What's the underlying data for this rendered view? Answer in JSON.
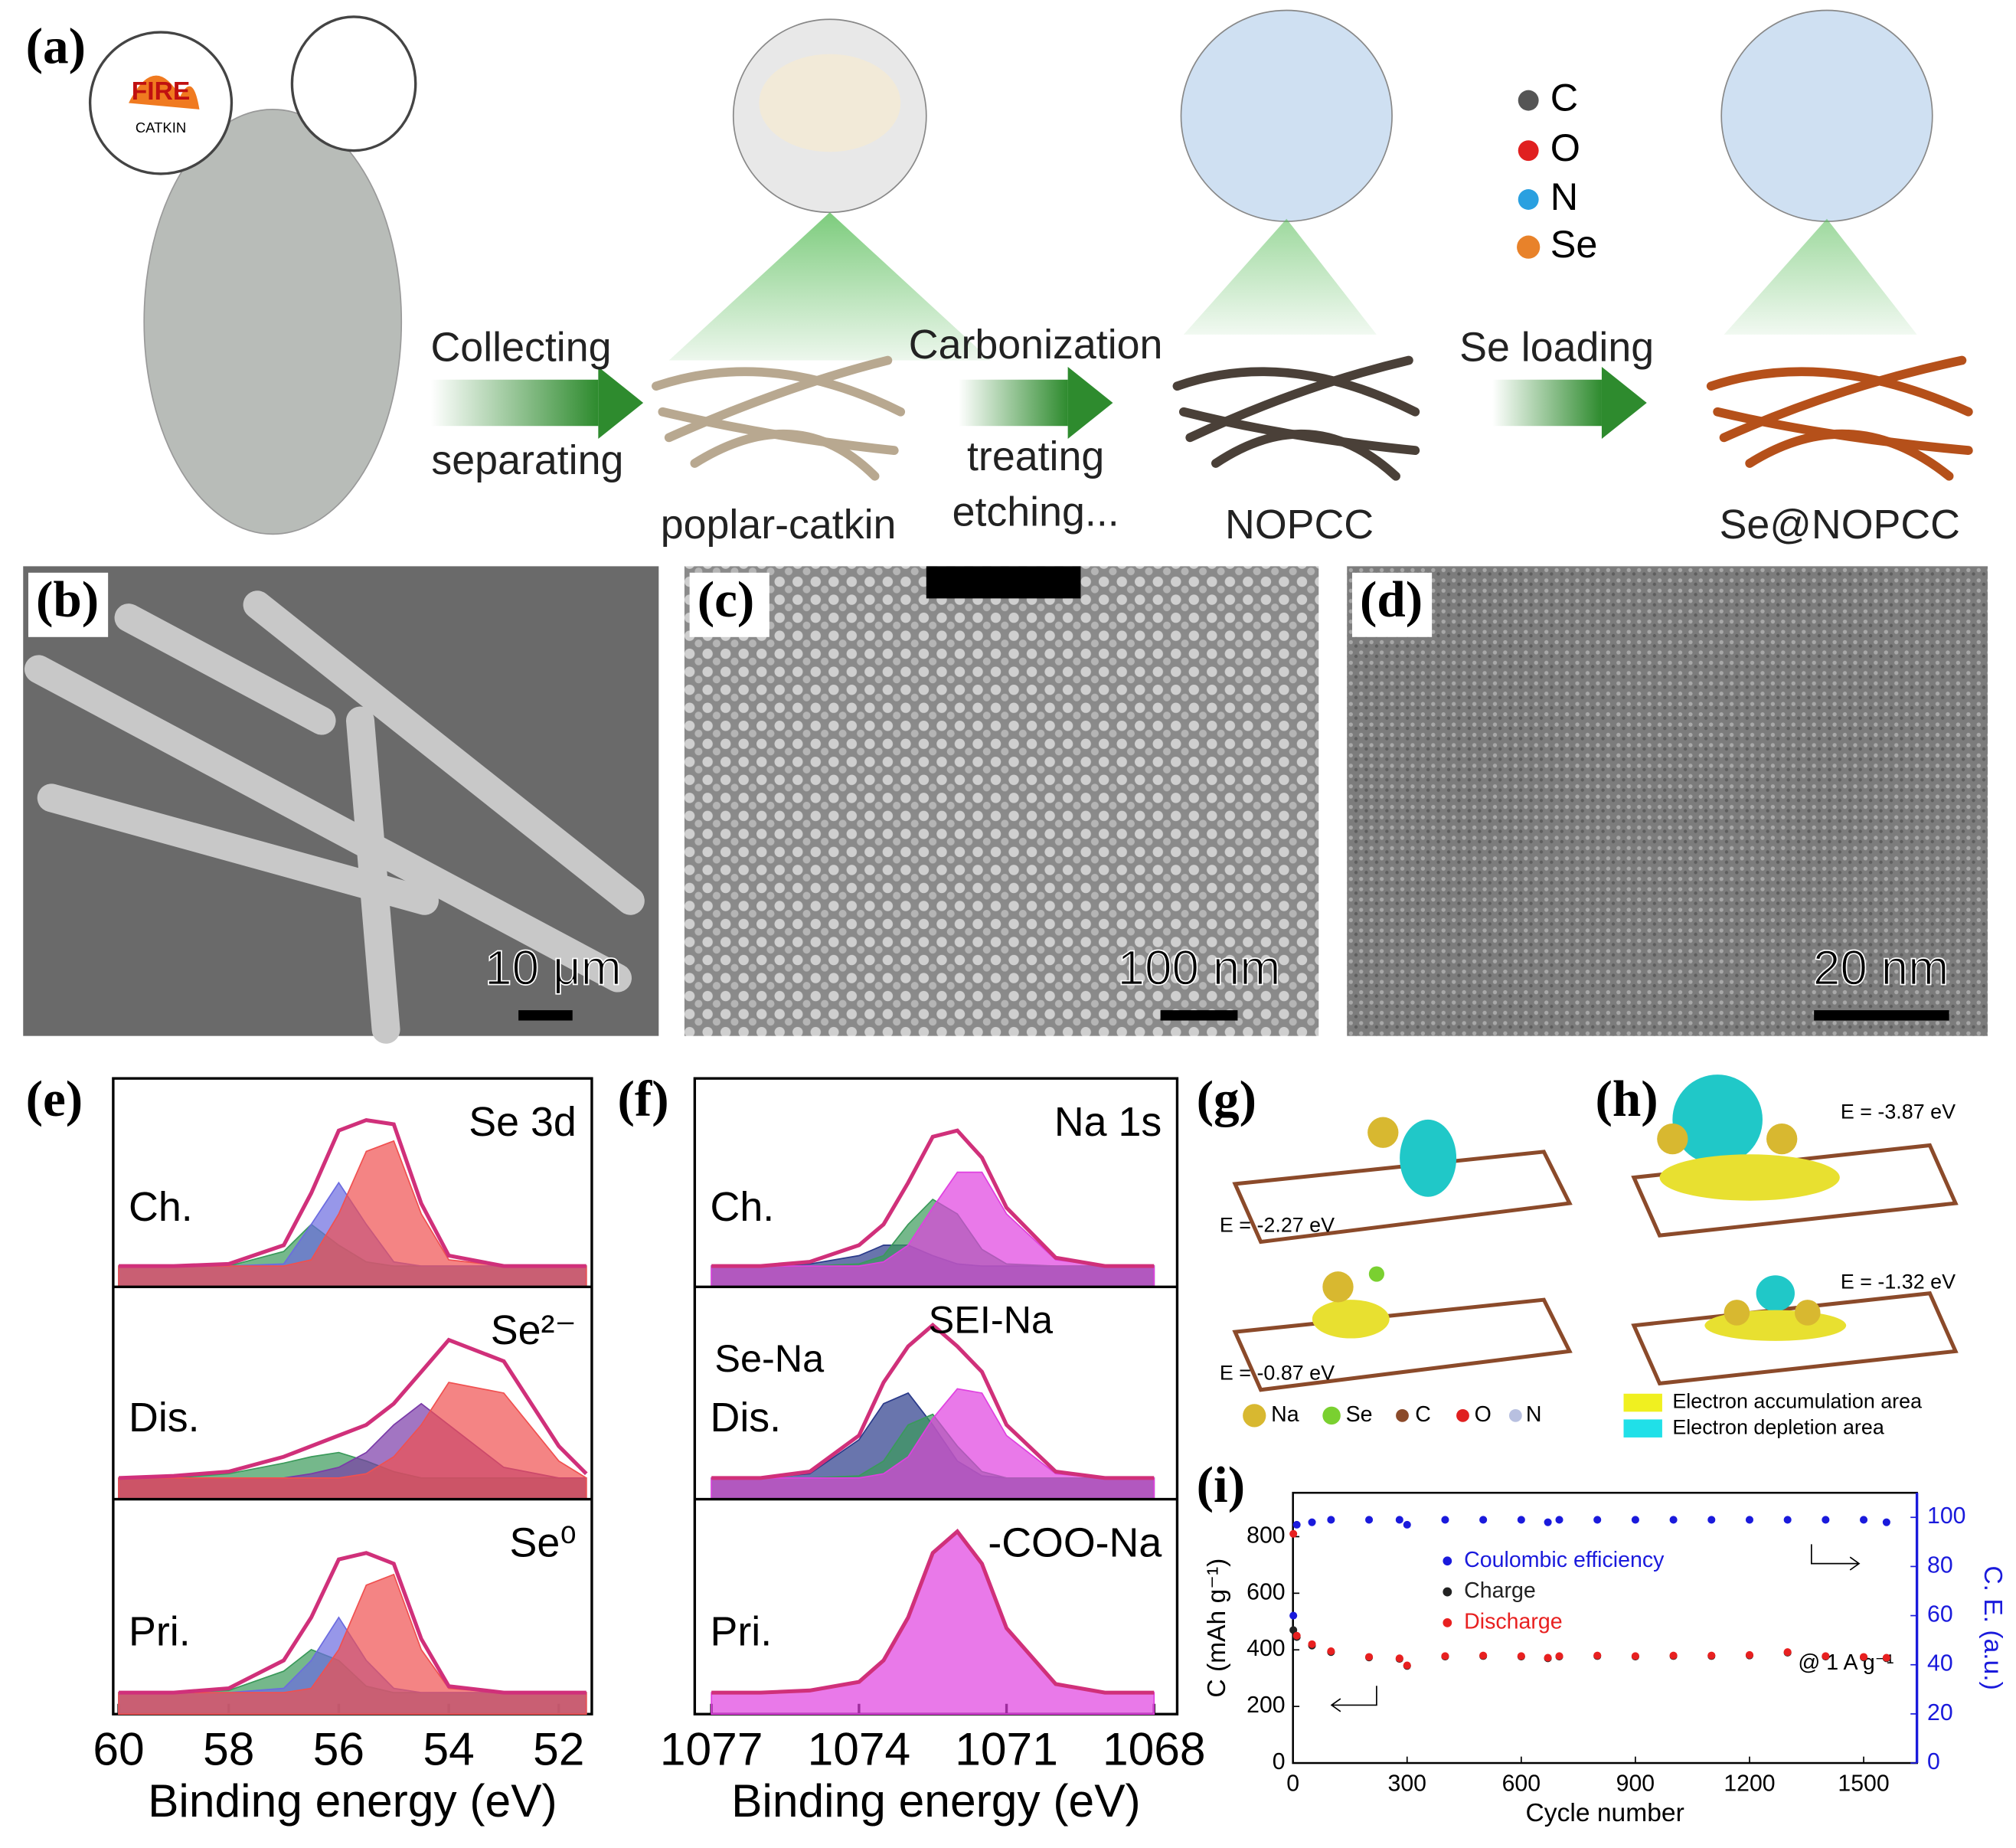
{
  "panel_labels": [
    "(a)",
    "(b)",
    "(c)",
    "(d)",
    "(e)",
    "(f)",
    "(g)",
    "(h)",
    "(i)"
  ],
  "scheme": {
    "cloud": [
      "FIRE",
      "CATKIN"
    ],
    "steps": [
      "Collecting",
      "separating",
      "poplar-catkin",
      "Carbonization",
      "treating",
      "etching...",
      "NOPCC",
      "Se loading",
      "Se@NOPCC"
    ],
    "legend": [
      "C",
      "O",
      "N",
      "Se"
    ]
  },
  "scale_bars": [
    "10 μm",
    "100 nm",
    "20 nm"
  ],
  "dft": {
    "g_energies": [
      "E = -2.27 eV",
      "E = -0.87 eV"
    ],
    "h_energies": [
      "E = -3.87 eV",
      "E = -1.32 eV"
    ],
    "g_legend": [
      "Na",
      "Se",
      "C",
      "O",
      "N"
    ],
    "h_legend": [
      "Electron accumulation area",
      "Electron depletion area"
    ]
  },
  "chart_data": [
    {
      "type": "xps",
      "xlabel": "Binding energy (eV)",
      "xlim": [
        60.1,
        51.4
      ],
      "xticks": [
        60,
        58,
        56,
        54,
        52
      ],
      "x": [
        60,
        59,
        58,
        57,
        56.5,
        56,
        55.5,
        55,
        54.5,
        54,
        53,
        52,
        51.5
      ],
      "panels": [
        {
          "title": "Se 3d",
          "label": "Ch.",
          "ylim": [
            0,
            1
          ],
          "series": [
            {
              "color": "#d0307a",
              "values": [
                0.1,
                0.1,
                0.11,
                0.2,
                0.45,
                0.75,
                0.8,
                0.78,
                0.4,
                0.15,
                0.1,
                0.1,
                0.1
              ]
            },
            {
              "color": "#3a9a5a",
              "values": [
                0.1,
                0.1,
                0.1,
                0.17,
                0.3,
                0.2,
                0.12,
                0.1,
                0.1,
                0.1,
                0.1,
                0.1,
                0.1
              ]
            },
            {
              "color": "#6b6be0",
              "values": [
                0.1,
                0.1,
                0.1,
                0.11,
                0.3,
                0.5,
                0.3,
                0.12,
                0.1,
                0.1,
                0.1,
                0.1,
                0.1
              ]
            },
            {
              "color": "#f05050",
              "values": [
                0.1,
                0.1,
                0.1,
                0.1,
                0.13,
                0.35,
                0.65,
                0.7,
                0.35,
                0.13,
                0.1,
                0.1,
                0.1
              ]
            }
          ]
        },
        {
          "title": "Se²⁻",
          "label": "Dis.",
          "ylim": [
            0,
            1
          ],
          "series": [
            {
              "color": "#d0307a",
              "values": [
                0.1,
                0.11,
                0.13,
                0.2,
                0.25,
                0.3,
                0.35,
                0.45,
                0.6,
                0.75,
                0.65,
                0.25,
                0.12
              ]
            },
            {
              "color": "#3a9a5a",
              "values": [
                0.1,
                0.1,
                0.12,
                0.17,
                0.2,
                0.22,
                0.18,
                0.13,
                0.1,
                0.1,
                0.1,
                0.1,
                0.1
              ]
            },
            {
              "color": "#7a3aa8",
              "values": [
                0.1,
                0.1,
                0.1,
                0.1,
                0.12,
                0.15,
                0.22,
                0.35,
                0.45,
                0.35,
                0.15,
                0.1,
                0.1
              ]
            },
            {
              "color": "#f05050",
              "values": [
                0.1,
                0.1,
                0.1,
                0.1,
                0.1,
                0.1,
                0.12,
                0.2,
                0.35,
                0.55,
                0.5,
                0.18,
                0.1
              ]
            }
          ]
        },
        {
          "title": "Se⁰",
          "label": "Pri.",
          "ylim": [
            0,
            1
          ],
          "series": [
            {
              "color": "#d0307a",
              "values": [
                0.1,
                0.1,
                0.12,
                0.25,
                0.45,
                0.72,
                0.75,
                0.7,
                0.35,
                0.13,
                0.1,
                0.1,
                0.1
              ]
            },
            {
              "color": "#3a9a5a",
              "values": [
                0.1,
                0.1,
                0.11,
                0.2,
                0.3,
                0.25,
                0.13,
                0.1,
                0.1,
                0.1,
                0.1,
                0.1,
                0.1
              ]
            },
            {
              "color": "#6b6be0",
              "values": [
                0.1,
                0.1,
                0.1,
                0.12,
                0.25,
                0.45,
                0.25,
                0.12,
                0.1,
                0.1,
                0.1,
                0.1,
                0.1
              ]
            },
            {
              "color": "#f05050",
              "values": [
                0.1,
                0.1,
                0.1,
                0.1,
                0.12,
                0.3,
                0.6,
                0.65,
                0.3,
                0.12,
                0.1,
                0.1,
                0.1
              ]
            }
          ]
        }
      ]
    },
    {
      "type": "xps",
      "xlabel": "Binding energy (eV)",
      "xlim": [
        1077.34,
        1067.53
      ],
      "xticks": [
        1077,
        1074,
        1071,
        1068
      ],
      "x": [
        1077,
        1076,
        1075,
        1074,
        1073.5,
        1073,
        1072.5,
        1072,
        1071.5,
        1071,
        1070,
        1069,
        1068
      ],
      "panels": [
        {
          "title": "Na 1s",
          "label": "Ch.",
          "ylim": [
            0,
            1
          ],
          "series": [
            {
              "color": "#d0307a",
              "values": [
                0.1,
                0.1,
                0.12,
                0.2,
                0.3,
                0.5,
                0.72,
                0.75,
                0.62,
                0.38,
                0.14,
                0.1,
                0.1
              ]
            },
            {
              "color": "#2a3a8a",
              "values": [
                0.1,
                0.1,
                0.11,
                0.15,
                0.2,
                0.2,
                0.15,
                0.11,
                0.1,
                0.1,
                0.1,
                0.1,
                0.1
              ]
            },
            {
              "color": "#3a9a5a",
              "values": [
                0.1,
                0.1,
                0.1,
                0.11,
                0.15,
                0.3,
                0.42,
                0.35,
                0.18,
                0.11,
                0.1,
                0.1,
                0.1
              ]
            },
            {
              "color": "#e040e0",
              "values": [
                0.1,
                0.1,
                0.1,
                0.1,
                0.12,
                0.2,
                0.38,
                0.55,
                0.55,
                0.35,
                0.13,
                0.1,
                0.1
              ]
            }
          ]
        },
        {
          "label": "Dis.",
          "annotations": [
            "SEI-Na",
            "Se-Na"
          ],
          "ylim": [
            0,
            1
          ],
          "series": [
            {
              "color": "#d0307a",
              "values": [
                0.1,
                0.1,
                0.13,
                0.3,
                0.55,
                0.72,
                0.82,
                0.72,
                0.6,
                0.35,
                0.13,
                0.1,
                0.1
              ]
            },
            {
              "color": "#2a3a8a",
              "values": [
                0.1,
                0.1,
                0.12,
                0.28,
                0.45,
                0.5,
                0.35,
                0.18,
                0.11,
                0.1,
                0.1,
                0.1,
                0.1
              ]
            },
            {
              "color": "#3a9a5a",
              "values": [
                0.1,
                0.1,
                0.1,
                0.11,
                0.18,
                0.35,
                0.4,
                0.25,
                0.13,
                0.1,
                0.1,
                0.1,
                0.1
              ]
            },
            {
              "color": "#e040e0",
              "values": [
                0.1,
                0.1,
                0.1,
                0.1,
                0.12,
                0.2,
                0.38,
                0.52,
                0.5,
                0.3,
                0.12,
                0.1,
                0.1
              ]
            }
          ]
        },
        {
          "title": "-COO-Na",
          "label": "Pri.",
          "ylim": [
            0,
            1
          ],
          "series": [
            {
              "color": "#d0307a",
              "values": [
                0.1,
                0.1,
                0.11,
                0.15,
                0.25,
                0.45,
                0.75,
                0.85,
                0.7,
                0.4,
                0.14,
                0.1,
                0.1
              ]
            },
            {
              "color": "#e040e0",
              "values": [
                0.1,
                0.1,
                0.11,
                0.15,
                0.25,
                0.45,
                0.75,
                0.85,
                0.7,
                0.4,
                0.14,
                0.1,
                0.1
              ]
            }
          ]
        }
      ]
    },
    {
      "type": "scatter",
      "xlabel": "Cycle number",
      "ylabel": "C (mAh g⁻¹)",
      "y2label": "C. E. (a.u.)",
      "annotation": "@ 1 A g⁻¹",
      "xlim": [
        0,
        1640
      ],
      "ylim": [
        0,
        955
      ],
      "y2lim": [
        0,
        110
      ],
      "xticks": [
        0,
        300,
        600,
        900,
        1200,
        1500
      ],
      "yticks": [
        0,
        200,
        400,
        600,
        800
      ],
      "y2ticks": [
        0,
        20,
        40,
        60,
        80,
        100
      ],
      "x": [
        1,
        10,
        50,
        100,
        200,
        280,
        300,
        400,
        500,
        600,
        670,
        700,
        800,
        900,
        1000,
        1100,
        1200,
        1300,
        1400,
        1500,
        1560
      ],
      "series": [
        {
          "name": "Coulombic efficiency",
          "color": "#1a1adc",
          "axis": "y2",
          "values": [
            60,
            97,
            98,
            99,
            99,
            99,
            97,
            99,
            99,
            99,
            98,
            99,
            99,
            99,
            99,
            99,
            99,
            99,
            99,
            99,
            98
          ]
        },
        {
          "name": "Charge",
          "color": "#222222",
          "values": [
            470,
            445,
            415,
            392,
            373,
            368,
            343,
            376,
            378,
            376,
            370,
            376,
            378,
            376,
            378,
            378,
            380,
            390,
            376,
            373,
            370
          ]
        },
        {
          "name": "Discharge",
          "color": "#e82020",
          "values": [
            810,
            450,
            420,
            395,
            375,
            370,
            345,
            378,
            380,
            378,
            372,
            378,
            380,
            378,
            380,
            380,
            382,
            392,
            378,
            375,
            372
          ]
        }
      ]
    }
  ]
}
